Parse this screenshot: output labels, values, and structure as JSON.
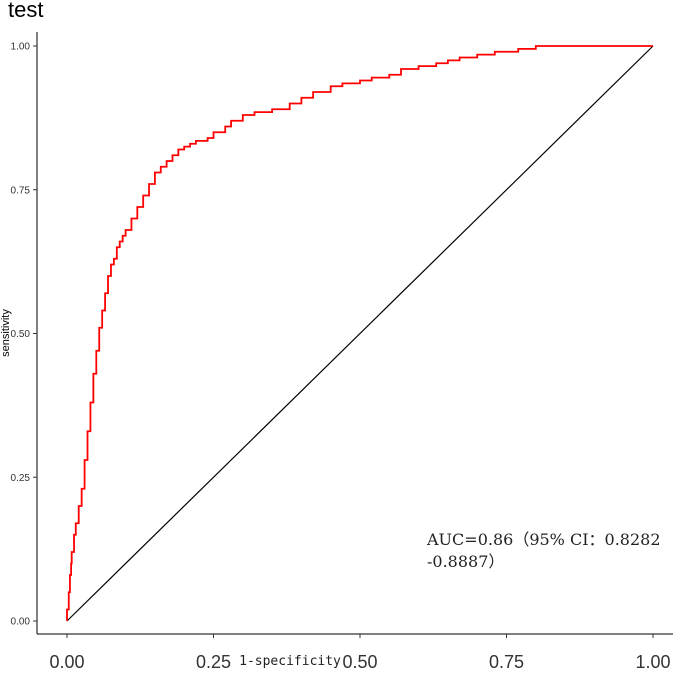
{
  "chart_data": {
    "type": "line",
    "title": "test",
    "xlabel": "1-specificity",
    "ylabel": "sensitivity",
    "xlim": [
      0,
      1
    ],
    "ylim": [
      0,
      1
    ],
    "x_ticks": [
      "0.00",
      "0.25",
      "0.50",
      "0.75",
      "1.00"
    ],
    "y_ticks": [
      "0.00",
      "0.25",
      "0.50",
      "0.75",
      "1.00"
    ],
    "grid": false,
    "colors": {
      "roc": "#ff0000",
      "reference": "#000000"
    },
    "annotation": {
      "line1": "AUC=0.86（95% CI：0.8282",
      "line2": "-0.8887）"
    },
    "series": [
      {
        "x": [
          0,
          0,
          0.003,
          0.005,
          0.007,
          0.008,
          0.012,
          0.015,
          0.02,
          0.025,
          0.03,
          0.035,
          0.04,
          0.045,
          0.05,
          0.055,
          0.06,
          0.065,
          0.07,
          0.075,
          0.08,
          0.085,
          0.09,
          0.095,
          0.1,
          0.11,
          0.12,
          0.13,
          0.14,
          0.15,
          0.16,
          0.17,
          0.18,
          0.19,
          0.2,
          0.21,
          0.22,
          0.24,
          0.25,
          0.27,
          0.28,
          0.3,
          0.32,
          0.35,
          0.38,
          0.4,
          0.42,
          0.45,
          0.47,
          0.5,
          0.52,
          0.55,
          0.57,
          0.6,
          0.63,
          0.65,
          0.67,
          0.7,
          0.73,
          0.75,
          0.77,
          0.8,
          0.85,
          0.9,
          1.0
        ],
        "y": [
          0,
          0.02,
          0.05,
          0.08,
          0.1,
          0.12,
          0.15,
          0.17,
          0.2,
          0.23,
          0.28,
          0.33,
          0.38,
          0.43,
          0.47,
          0.51,
          0.54,
          0.57,
          0.6,
          0.62,
          0.63,
          0.65,
          0.66,
          0.67,
          0.68,
          0.7,
          0.72,
          0.74,
          0.76,
          0.78,
          0.79,
          0.8,
          0.81,
          0.82,
          0.825,
          0.83,
          0.835,
          0.84,
          0.85,
          0.86,
          0.87,
          0.88,
          0.885,
          0.89,
          0.9,
          0.91,
          0.92,
          0.93,
          0.935,
          0.94,
          0.945,
          0.95,
          0.96,
          0.965,
          0.97,
          0.975,
          0.98,
          0.985,
          0.99,
          0.99,
          0.995,
          1.0,
          1.0,
          1.0,
          1.0
        ]
      },
      {
        "x": [
          0,
          1
        ],
        "y": [
          0,
          1
        ]
      }
    ]
  }
}
